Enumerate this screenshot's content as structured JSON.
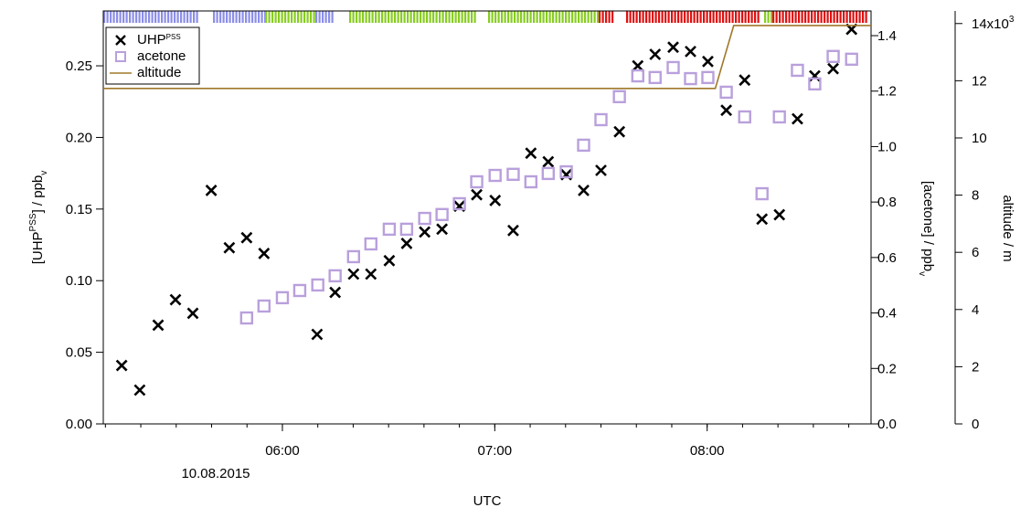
{
  "chart_data": {
    "type": "scatter",
    "x_label": "UTC",
    "date_label": "10.08.2015",
    "y_label_parts": [
      "[UHP",
      "PSS",
      "] / ppb",
      "v"
    ],
    "y2_label_parts": [
      "[acetone] / ppb",
      "v"
    ],
    "y3_label": "altitude / m",
    "y3_exponent": "3",
    "xlim": [
      309.4,
      526.3
    ],
    "xticks": [
      {
        "value": 360,
        "label": "06:00"
      },
      {
        "value": 420,
        "label": "07:00"
      },
      {
        "value": 480,
        "label": "08:00"
      }
    ],
    "ylim": [
      0,
      0.2883
    ],
    "yticks": [
      {
        "value": 0,
        "label": "0.00"
      },
      {
        "value": 0.05,
        "label": "0.05"
      },
      {
        "value": 0.1,
        "label": "0.10"
      },
      {
        "value": 0.15,
        "label": "0.15"
      },
      {
        "value": 0.2,
        "label": "0.20"
      },
      {
        "value": 0.25,
        "label": "0.25"
      }
    ],
    "y2lim": [
      0,
      1.489
    ],
    "y2ticks": [
      {
        "value": 0,
        "label": "0.0"
      },
      {
        "value": 0.2,
        "label": "0.2"
      },
      {
        "value": 0.4,
        "label": "0.4"
      },
      {
        "value": 0.6,
        "label": "0.6"
      },
      {
        "value": 0.8,
        "label": "0.8"
      },
      {
        "value": 1,
        "label": "1.0"
      },
      {
        "value": 1.2,
        "label": "1.2"
      },
      {
        "value": 1.4,
        "label": "1.4"
      }
    ],
    "y3lim": [
      0,
      14.44
    ],
    "y3ticks": [
      0,
      2,
      4,
      6,
      8,
      10,
      12,
      {
        "value": 14,
        "label": "14x10"
      }
    ],
    "series": [
      {
        "name": "UHP",
        "name_superscript": "PSS",
        "color": "#000000",
        "marker": "x",
        "axis": "y",
        "x": [
          314.6,
          319.7,
          324.9,
          329.8,
          334.7,
          339.9,
          345.0,
          349.9,
          354.8,
          369.8,
          374.9,
          380.1,
          385.0,
          390.2,
          395.1,
          400.2,
          405.1,
          410.0,
          414.9,
          420.1,
          425.2,
          430.2,
          435.1,
          440.2,
          445.1,
          450.0,
          455.2,
          460.4,
          465.3,
          470.4,
          475.3,
          480.2,
          485.4,
          490.6,
          495.5,
          500.4,
          505.5,
          510.4,
          515.6,
          520.8
        ],
        "values": [
          0.0408,
          0.0236,
          0.0689,
          0.0867,
          0.0772,
          0.163,
          0.123,
          0.13,
          0.119,
          0.0625,
          0.0918,
          0.1046,
          0.1046,
          0.114,
          0.126,
          0.134,
          0.136,
          0.152,
          0.16,
          0.156,
          0.135,
          0.189,
          0.183,
          0.174,
          0.163,
          0.177,
          0.204,
          0.25,
          0.258,
          0.263,
          0.26,
          0.253,
          0.219,
          0.24,
          0.143,
          0.146,
          0.213,
          0.243,
          0.248,
          0.2755
        ]
      },
      {
        "name": "acetone",
        "color": "#b9a0dc",
        "marker": "square",
        "axis": "y2",
        "x": [
          349.9,
          354.8,
          360.0,
          364.9,
          370.0,
          374.9,
          380.1,
          385.0,
          390.2,
          395.1,
          400.2,
          405.1,
          410.0,
          414.9,
          420.1,
          425.2,
          430.2,
          435.1,
          440.2,
          445.1,
          450.0,
          455.2,
          460.4,
          465.3,
          470.4,
          475.3,
          480.2,
          485.4,
          490.6,
          495.5,
          500.4,
          505.5,
          510.4,
          515.6,
          520.8
        ],
        "values": [
          0.382,
          0.425,
          0.455,
          0.481,
          0.501,
          0.534,
          0.603,
          0.649,
          0.702,
          0.702,
          0.741,
          0.755,
          0.794,
          0.873,
          0.896,
          0.9,
          0.873,
          0.903,
          0.909,
          1.005,
          1.097,
          1.18,
          1.255,
          1.249,
          1.285,
          1.245,
          1.249,
          1.196,
          1.107,
          0.83,
          1.107,
          1.275,
          1.226,
          1.325,
          1.315
        ]
      },
      {
        "name": "altitude",
        "color": "#a0782a",
        "marker": "line",
        "axis": "y3",
        "x": [
          309.4,
          482.3,
          487.5,
          526.3
        ],
        "values": [
          11.73,
          11.73,
          13.93,
          13.93
        ]
      }
    ]
  }
}
